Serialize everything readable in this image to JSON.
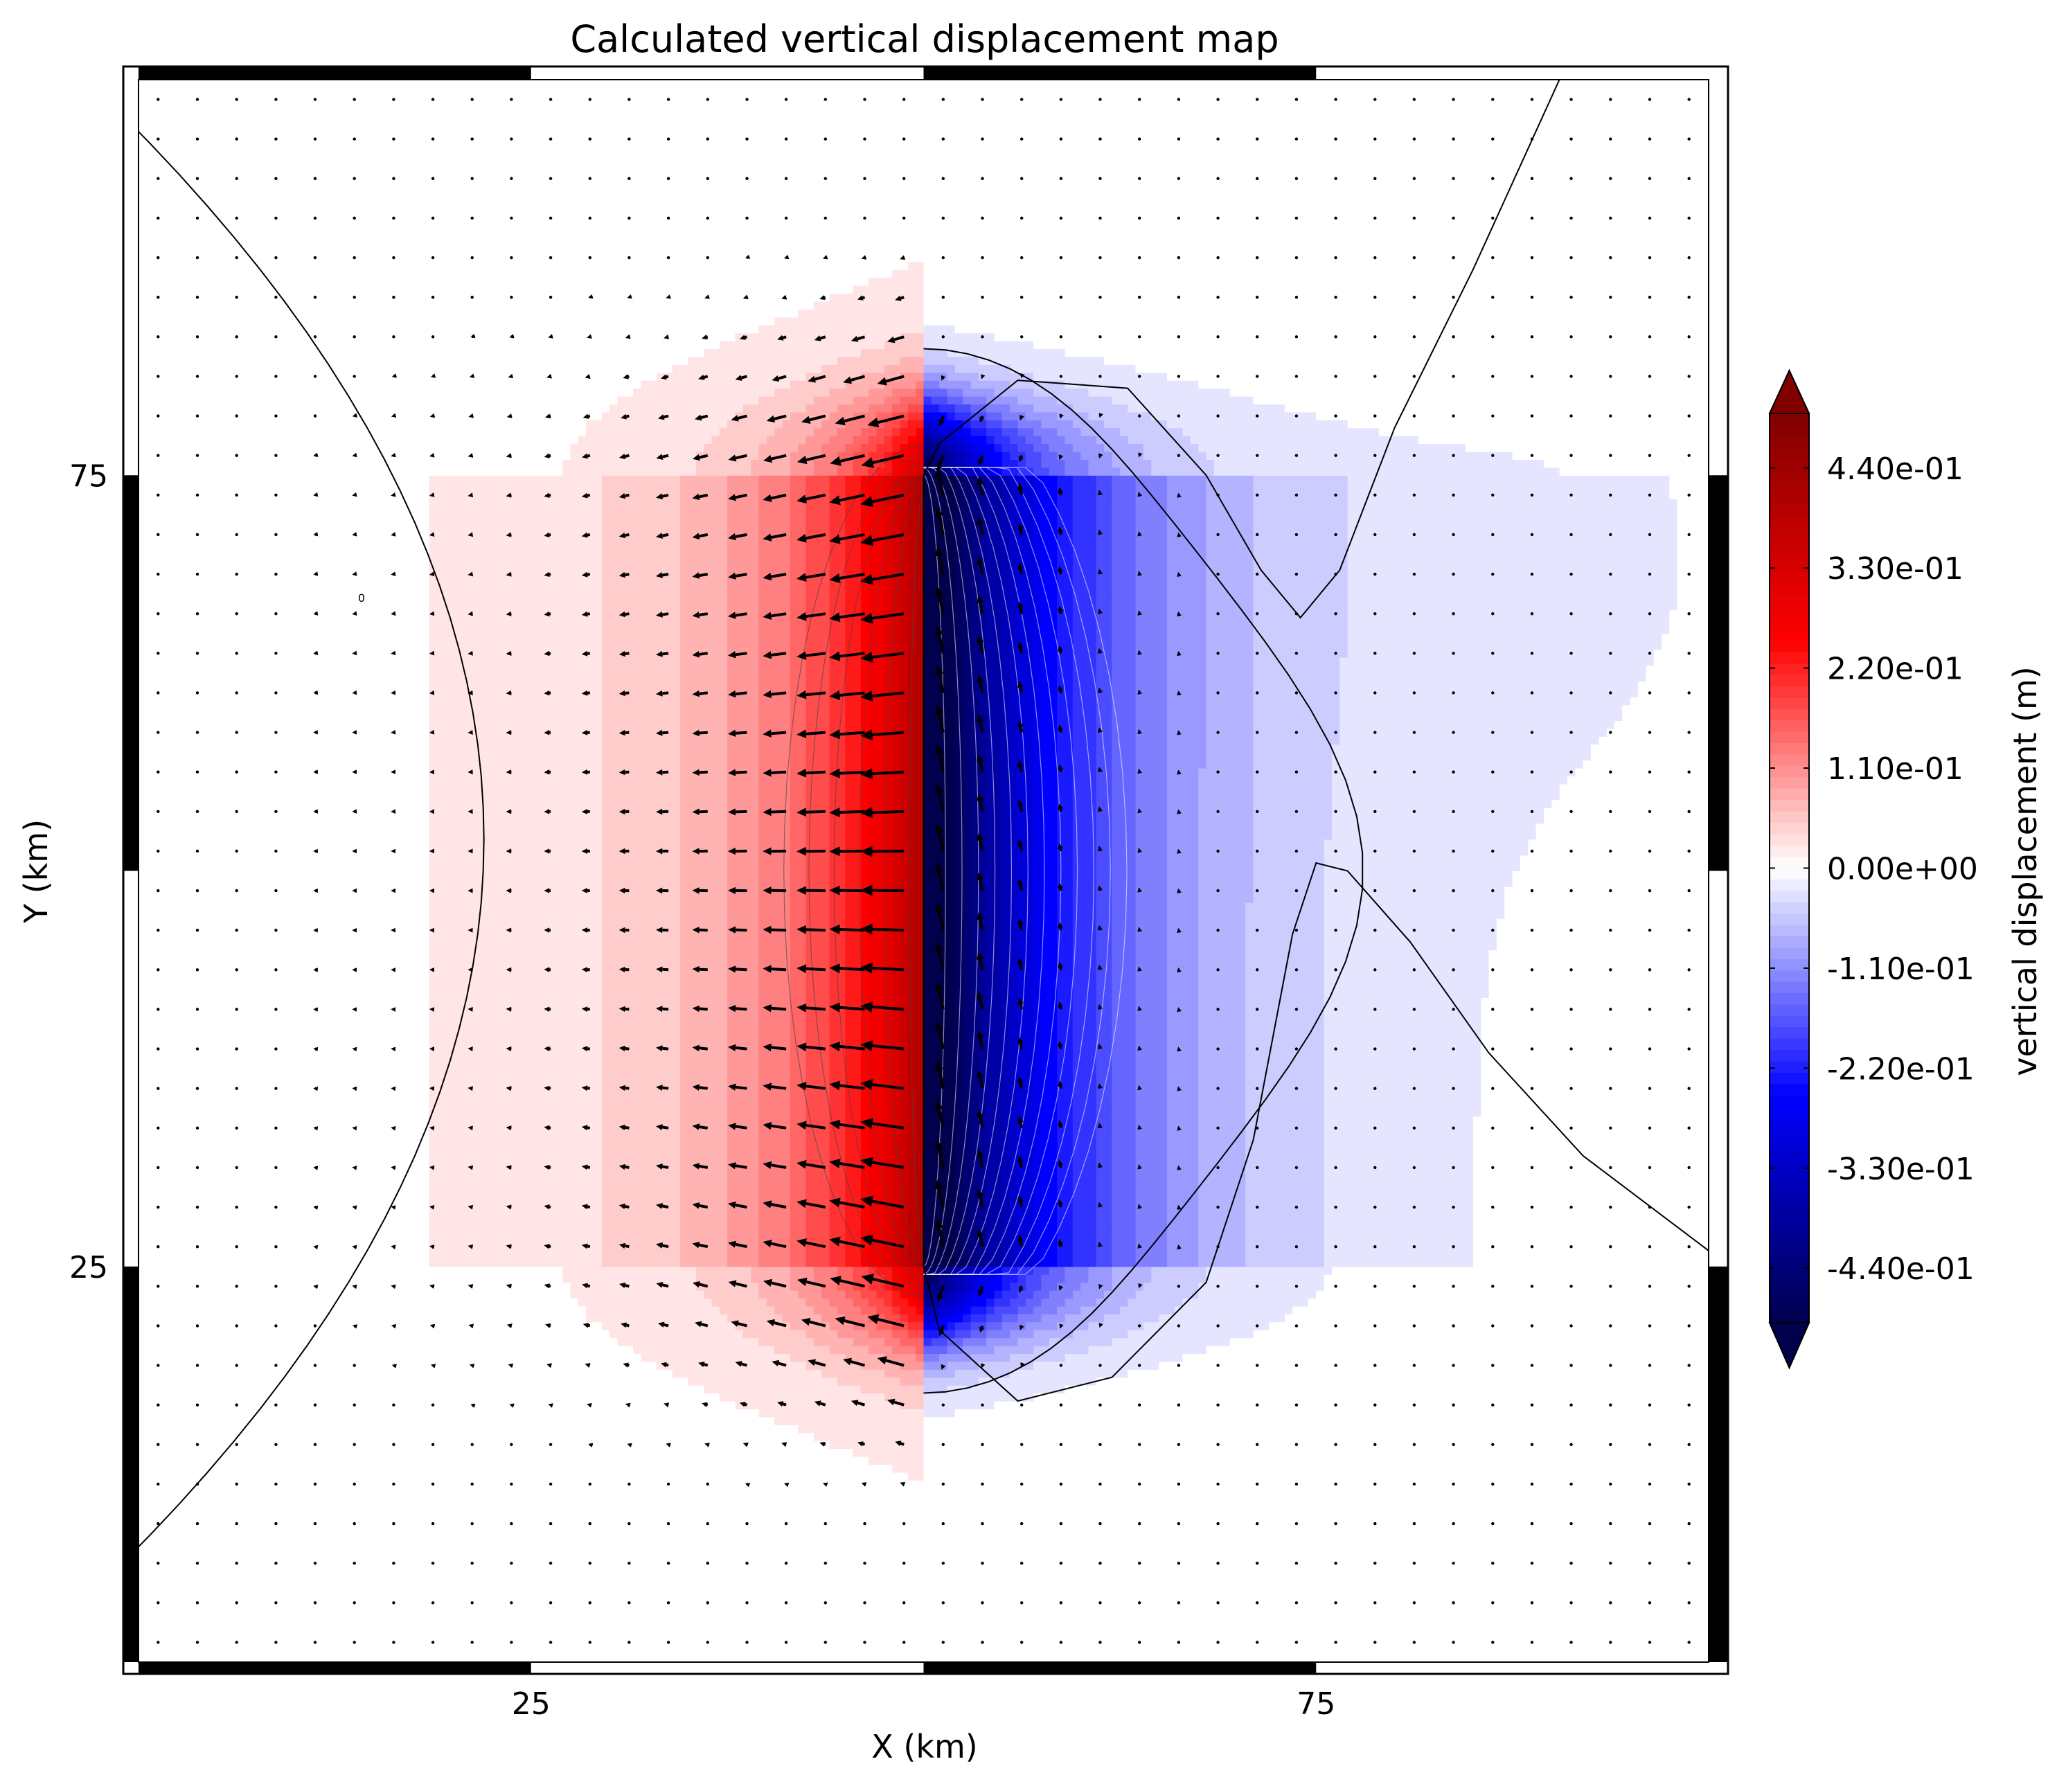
{
  "chart_data": {
    "type": "contour-map",
    "title": "Calculated vertical displacement map",
    "xlabel": "X (km)",
    "ylabel": "Y (km)",
    "xlim": [
      0,
      100
    ],
    "ylim": [
      0,
      100
    ],
    "x_ticks": [
      {
        "value": 25,
        "label": "25"
      },
      {
        "value": 75,
        "label": "75"
      }
    ],
    "y_ticks": [
      {
        "value": 75,
        "label": "75"
      },
      {
        "value": 25,
        "label": "25"
      }
    ],
    "fault_trace": {
      "x": 50,
      "y_start": 25,
      "y_end": 75
    },
    "zero_contour_label": "0",
    "displacement_range_m": [
      -0.5,
      0.5
    ],
    "colormap": "seismic",
    "colorbar": {
      "label": "vertical displacement (m)",
      "extend": "both",
      "ticks": [
        {
          "value": 0.44,
          "label": "4.40e-01"
        },
        {
          "value": 0.33,
          "label": "3.30e-01"
        },
        {
          "value": 0.22,
          "label": "2.20e-01"
        },
        {
          "value": 0.11,
          "label": "1.10e-01"
        },
        {
          "value": 0.0,
          "label": "0.00e+00"
        },
        {
          "value": -0.11,
          "label": "-1.10e-01"
        },
        {
          "value": -0.22,
          "label": "-2.20e-01"
        },
        {
          "value": -0.33,
          "label": "-3.30e-01"
        },
        {
          "value": -0.44,
          "label": "-4.40e-01"
        }
      ]
    },
    "quiver": {
      "grid_spacing_km": 2.5,
      "color": "#000000"
    }
  }
}
